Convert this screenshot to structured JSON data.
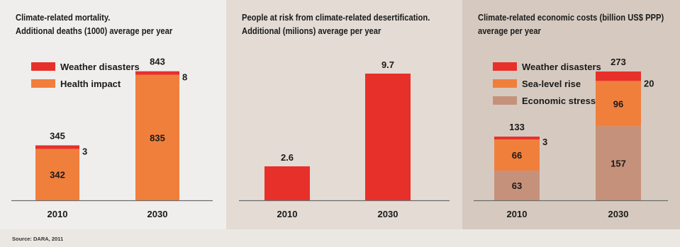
{
  "colors": {
    "weather": "#e8302a",
    "health": "#f07f3c",
    "sealevel": "#f07f3c",
    "economic": "#c6917a",
    "axis": "#6b6b6b"
  },
  "source": "Source: DARA, 2011",
  "chart_data": [
    {
      "type": "bar",
      "stacked": true,
      "title": [
        "Climate-related mortality.",
        "Additional deaths (1000) average per year"
      ],
      "categories": [
        "2010",
        "2030"
      ],
      "series": [
        {
          "name": "Health impact",
          "values": [
            342,
            835
          ],
          "labels": [
            "342",
            "835"
          ]
        },
        {
          "name": "Weather disasters",
          "values": [
            3,
            8
          ],
          "labels": [
            "3",
            "8"
          ]
        }
      ],
      "totals": [
        "345",
        "843"
      ],
      "ylim": [
        0,
        843
      ],
      "legend": "top-left"
    },
    {
      "type": "bar",
      "title": [
        "People at risk from climate-related desertification.",
        "Additional (milions) average per year"
      ],
      "categories": [
        "2010",
        "2030"
      ],
      "series": [
        {
          "values": [
            2.6,
            9.7
          ],
          "labels": [
            "2.6",
            "9.7"
          ]
        }
      ],
      "ylim": [
        0,
        9.7
      ]
    },
    {
      "type": "bar",
      "stacked": true,
      "title": [
        "Climate-related economic costs (billion US$ PPP)",
        "average per year"
      ],
      "categories": [
        "2010",
        "2030"
      ],
      "series": [
        {
          "name": "Economic stress",
          "values": [
            63,
            157
          ],
          "labels": [
            "63",
            "157"
          ]
        },
        {
          "name": "Sea-level rise",
          "values": [
            66,
            96
          ],
          "labels": [
            "66",
            "96"
          ]
        },
        {
          "name": "Weather disasters",
          "values": [
            3,
            20
          ],
          "labels": [
            "3",
            "20"
          ]
        }
      ],
      "totals": [
        "133",
        "273"
      ],
      "ylim": [
        0,
        273
      ],
      "legend": "top-left"
    }
  ]
}
